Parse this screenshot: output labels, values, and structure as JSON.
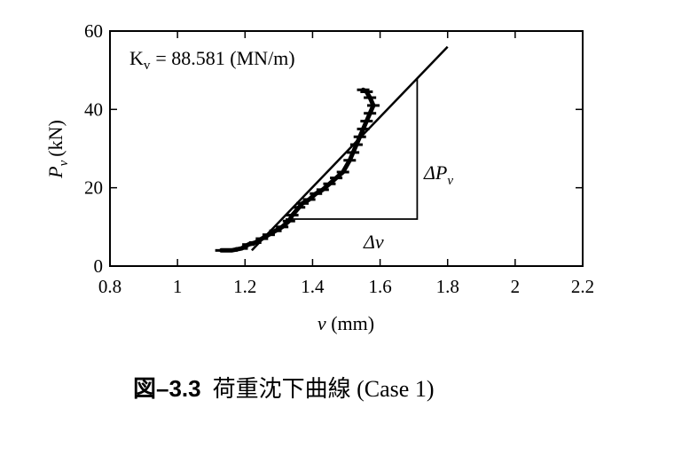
{
  "chart_data": {
    "type": "line",
    "xlabel_var": "v",
    "xlabel_unit": "(mm)",
    "ylabel_var": "P",
    "ylabel_sub": "v",
    "ylabel_unit": "(kN)",
    "xlim": [
      0.8,
      2.2
    ],
    "ylim": [
      0,
      60
    ],
    "xticks": [
      0.8,
      1,
      1.2,
      1.4,
      1.6,
      1.8,
      2,
      2.2
    ],
    "xtick_labels": [
      "0.8",
      "1",
      "1.2",
      "1.4",
      "1.6",
      "1.8",
      "2",
      "2.2"
    ],
    "yticks": [
      0,
      20,
      40,
      60
    ],
    "ytick_labels": [
      "0",
      "20",
      "40",
      "60"
    ],
    "grid": false,
    "annotation_k": "K",
    "annotation_k_sub": "v",
    "annotation_k_value": "= 88.581  (MN/m)",
    "annotation_dv": "Δv",
    "annotation_dp": "ΔP",
    "annotation_dp_sub": "v",
    "series": [
      {
        "kind": "measured",
        "x": [
          1.13,
          1.16,
          1.19,
          1.21,
          1.23,
          1.25,
          1.27,
          1.29,
          1.31,
          1.33,
          1.34,
          1.36,
          1.37,
          1.39,
          1.41,
          1.43,
          1.45,
          1.47,
          1.49,
          1.51,
          1.52,
          1.53,
          1.54,
          1.55,
          1.56,
          1.57,
          1.58,
          1.57,
          1.56,
          1.55
        ],
        "y": [
          4,
          4,
          4.5,
          5.5,
          6,
          7,
          8,
          9,
          10,
          11.5,
          13,
          15,
          16,
          17,
          18.5,
          19.5,
          21,
          22.5,
          24,
          27,
          29,
          31,
          33,
          35,
          37,
          39,
          41,
          43,
          44.5,
          45
        ]
      },
      {
        "kind": "fitted",
        "x": [
          1.22,
          1.8
        ],
        "y": [
          4,
          56
        ]
      },
      {
        "kind": "triangle",
        "x": [
          1.32,
          1.71,
          1.71
        ],
        "y": [
          12,
          12,
          48
        ]
      }
    ]
  },
  "caption": {
    "prefix": "図",
    "number": "–3.3",
    "text": "荷重沈下曲線 (Case 1)"
  }
}
